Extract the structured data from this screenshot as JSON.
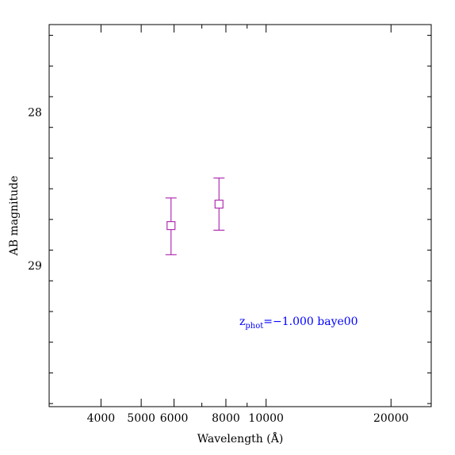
{
  "chart_data": {
    "type": "scatter",
    "xlabel": "Wavelength (Å)",
    "ylabel": "AB magnitude",
    "x_scale": "log",
    "xlim": [
      3000,
      25000
    ],
    "ylim": [
      29.92,
      27.43
    ],
    "x_ticks": [
      4000,
      5000,
      6000,
      8000,
      10000,
      20000
    ],
    "x_tick_labels": [
      "4000",
      "5000",
      "6000",
      "8000",
      "10000",
      "20000"
    ],
    "y_ticks": [
      28,
      29
    ],
    "y_tick_labels": [
      "28",
      "29"
    ],
    "grid": false,
    "series": [
      {
        "marker": "open-square",
        "color": "#b030b0",
        "points": [
          {
            "x": 5900,
            "y": 28.74,
            "yerr_low": 28.56,
            "yerr_high": 28.93
          },
          {
            "x": 7700,
            "y": 28.6,
            "yerr_low": 28.43,
            "yerr_high": 28.77
          }
        ]
      }
    ],
    "annotation": {
      "z_prefix": "z",
      "z_subscript": "phot",
      "z_rest": "=−1.000  baye00",
      "color": "#0000ff"
    }
  }
}
